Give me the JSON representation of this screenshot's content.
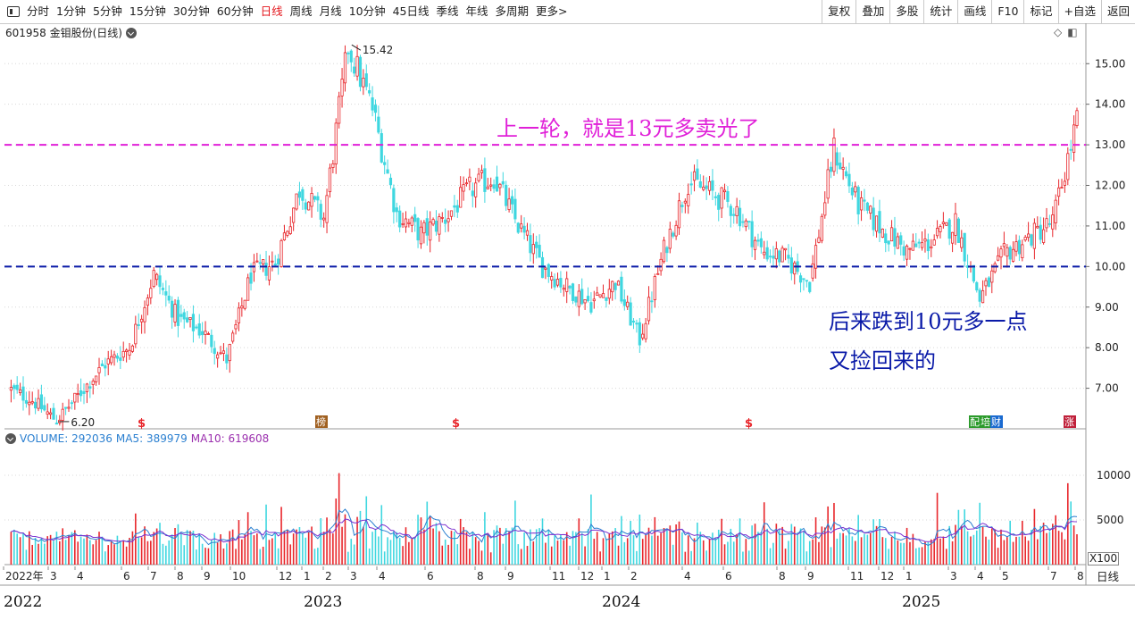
{
  "toolbar": {
    "periods": [
      "分时",
      "1分钟",
      "5分钟",
      "15分钟",
      "30分钟",
      "60分钟",
      "日线",
      "周线",
      "月线",
      "10分钟",
      "45日线",
      "季线",
      "年线",
      "多周期",
      "更多>"
    ],
    "active_period": "日线",
    "right_buttons": [
      "复权",
      "叠加",
      "多股",
      "统计",
      "画线",
      "F10",
      "标记",
      "+自选",
      "返回"
    ]
  },
  "stock": {
    "title": "601958 金钼股份(日线)"
  },
  "colors": {
    "up": "#e8262b",
    "down": "#3fd7e0",
    "pink_line": "#e020d8",
    "blue_line": "#0a1aa8",
    "ma5": "#2a7fd0",
    "ma10": "#7b2fcf"
  },
  "chart_data": {
    "type": "candlestick",
    "price_axis": {
      "ticks": [
        7.0,
        8.0,
        9.0,
        10.0,
        11.0,
        12.0,
        13.0,
        14.0,
        15.0
      ],
      "labels": [
        "7.00",
        "8.00",
        "9.00",
        "10.00",
        "11.00",
        "12.00",
        "13.00",
        "14.00",
        "15.00"
      ],
      "range": [
        6.0,
        15.6
      ]
    },
    "high_marker": {
      "value": 15.42,
      "label": "15.42"
    },
    "low_marker": {
      "value": 6.2,
      "label": "6.20"
    },
    "reference_lines": [
      {
        "value": 13.0,
        "color": "#e020d8",
        "style": "dashed"
      },
      {
        "value": 10.0,
        "color": "#0a1aa8",
        "style": "dashed"
      }
    ],
    "annotations": [
      {
        "text": "上一轮，就是13元多卖光了",
        "color": "#e020d8"
      },
      {
        "text": "后来跌到10元多一点",
        "color": "#0a1aa8"
      },
      {
        "text": "又捡回来的",
        "color": "#0a1aa8"
      }
    ],
    "key_prices": [
      [
        "2022-01",
        7.0
      ],
      [
        "2022-02",
        6.7
      ],
      [
        "2022-02",
        6.2
      ],
      [
        "2022-03",
        6.9
      ],
      [
        "2022-04",
        7.6
      ],
      [
        "2022-05",
        8.0
      ],
      [
        "2022-06",
        9.8
      ],
      [
        "2022-07",
        8.7
      ],
      [
        "2022-08",
        8.4
      ],
      [
        "2022-09",
        7.7
      ],
      [
        "2022-10",
        9.8
      ],
      [
        "2022-11",
        10.1
      ],
      [
        "2022-12",
        11.9
      ],
      [
        "2023-01",
        11.2
      ],
      [
        "2023-02",
        15.42
      ],
      [
        "2023-03",
        13.9
      ],
      [
        "2023-04",
        11.3
      ],
      [
        "2023-05",
        10.8
      ],
      [
        "2023-06",
        11.2
      ],
      [
        "2023-07",
        11.9
      ],
      [
        "2023-08",
        12.2
      ],
      [
        "2023-09",
        11.0
      ],
      [
        "2023-10",
        10.0
      ],
      [
        "2023-11",
        9.5
      ],
      [
        "2023-12",
        9.1
      ],
      [
        "2024-01",
        9.6
      ],
      [
        "2024-02",
        8.2
      ],
      [
        "2024-03",
        10.4
      ],
      [
        "2024-04",
        12.1
      ],
      [
        "2024-05",
        11.8
      ],
      [
        "2024-06",
        11.4
      ],
      [
        "2024-07",
        10.4
      ],
      [
        "2024-08",
        10.2
      ],
      [
        "2024-09",
        9.6
      ],
      [
        "2024-10",
        12.9
      ],
      [
        "2024-11",
        11.5
      ],
      [
        "2024-12",
        10.9
      ],
      [
        "2025-01",
        10.4
      ],
      [
        "2025-02",
        10.6
      ],
      [
        "2025-03",
        11.1
      ],
      [
        "2025-04",
        9.2
      ],
      [
        "2025-05",
        10.3
      ],
      [
        "2025-06",
        10.7
      ],
      [
        "2025-07",
        11.1
      ],
      [
        "2025-08",
        13.6
      ]
    ]
  },
  "volume_panel": {
    "label": "VOLUME: 292036",
    "ma5_label": "MA5: 389979",
    "ma10_label": "MA10: 619608",
    "axis_labels": [
      "10000",
      "5000"
    ],
    "unit": "X100",
    "volume_ticks": [
      10000,
      5000
    ]
  },
  "month_axis": [
    "2022年",
    "3",
    "4",
    "6",
    "7",
    "8",
    "9",
    "10",
    "12",
    "1",
    "2",
    "3",
    "4",
    "6",
    "8",
    "9",
    "11",
    "12",
    "1",
    "2",
    "4",
    "6",
    "8",
    "9",
    "11",
    "12",
    "1",
    "3",
    "4",
    "5",
    "7",
    "8"
  ],
  "rixian_label": "日线",
  "year_labels": [
    "2022",
    "2023",
    "2024",
    "2025"
  ],
  "event_markers": [
    {
      "symbol": "$",
      "color": "#e8262b"
    },
    {
      "symbol": "榜",
      "color": "#a06020"
    },
    {
      "symbol": "$",
      "color": "#e8262b"
    },
    {
      "symbol": "$",
      "color": "#e8262b"
    },
    {
      "symbol": "配",
      "color": "#2a9a2a"
    },
    {
      "symbol": "培",
      "color": "#2a9a2a"
    },
    {
      "symbol": "财",
      "color": "#1a6ad0"
    },
    {
      "symbol": "涨",
      "color": "#c0203a"
    }
  ]
}
